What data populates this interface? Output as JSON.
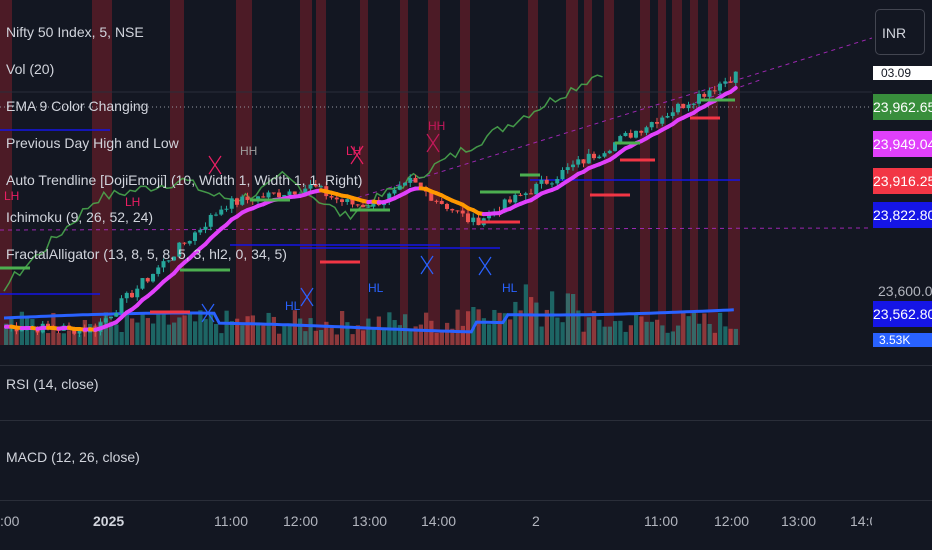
{
  "chart_data": {
    "type": "candlestick",
    "title": "Nifty 50 Index, 5, NSE",
    "indicators": [
      "Vol (20)",
      "EMA 9 Color Changing",
      "Previous Day High and Low",
      "Auto Trendline [DojiEmoji] (10, Width 1, Width 1, 1, Right)",
      "Ichimoku (9, 26, 52, 24)",
      "FractalAlligator (13, 8, 5, 8, 5, 3, hl2, 0, 34, 5)"
    ],
    "panes": [
      "RSI (14, close)",
      "MACD (12, 26, close)"
    ],
    "currency": "INR",
    "price_labels": [
      {
        "text": "23,962.65",
        "color": "#388e3c"
      },
      {
        "text": "23,949.04",
        "color": "#e040fb"
      },
      {
        "text": "23,916.25",
        "color": "#f23645"
      },
      {
        "text": "23,822.80",
        "color": "#1515e6"
      },
      {
        "text": "23,562.80",
        "color": "#1515e6"
      }
    ],
    "partial_price_labels": [
      "03.09",
      "23,600.00",
      "3.53K"
    ],
    "x_tick_labels": [
      ":00",
      "2025",
      "11:00",
      "12:00",
      "13:00",
      "14:00",
      "2",
      "11:00",
      "12:00",
      "13:00",
      "14:00"
    ],
    "swing_labels": [
      {
        "text": "LH",
        "color": "#e91e63"
      },
      {
        "text": "LH",
        "color": "#e91e63"
      },
      {
        "text": "HH",
        "color": "#c2185b"
      },
      {
        "text": "HH",
        "color": "#9e9e9e"
      },
      {
        "text": "LH",
        "color": "#e91e63"
      },
      {
        "text": "HL",
        "color": "#2962ff"
      },
      {
        "text": "HL",
        "color": "#2962ff"
      },
      {
        "text": "HL",
        "color": "#2962ff"
      }
    ],
    "y_approx_range": [
      23520,
      24060
    ],
    "price_path": {
      "start": 23560,
      "low": 23545,
      "first_high": 23790,
      "pullback": 23760,
      "mid_high": 23800,
      "dip": 23720,
      "end": 23962.65
    }
  }
}
